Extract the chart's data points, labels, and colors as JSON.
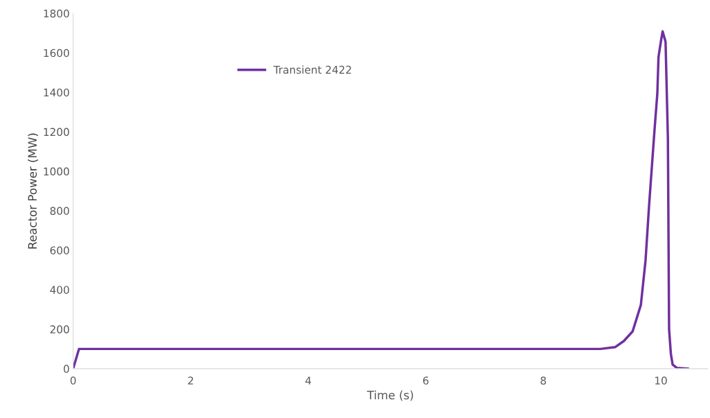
{
  "chart_data": {
    "type": "line",
    "xlabel": "Time (s)",
    "ylabel": "Reactor Power (MW)",
    "xlim": [
      0,
      10.8
    ],
    "xticks": [
      0,
      2,
      4,
      6,
      8,
      10
    ],
    "ylim": [
      0,
      1800
    ],
    "yticks": [
      0,
      200,
      400,
      600,
      800,
      1000,
      1200,
      1400,
      1600,
      1800
    ],
    "grid": false,
    "legend": "top",
    "marker": "none",
    "line_style": "solid",
    "series": [
      {
        "name": "Transient 2422",
        "color": "#7030a0",
        "x": [
          0,
          0.1,
          4,
          8.97,
          9.22,
          9.37,
          9.52,
          9.66,
          9.74,
          9.8,
          9.89,
          9.94,
          9.96,
          10.0,
          10.03,
          10.08,
          10.12,
          10.14,
          10.17,
          10.2,
          10.27,
          10.46
        ],
        "values": [
          0,
          100,
          100,
          100,
          109,
          140,
          189,
          323,
          550,
          828,
          1200,
          1393,
          1579,
          1656,
          1709,
          1656,
          1165,
          200,
          77,
          21,
          4,
          0
        ]
      }
    ]
  }
}
